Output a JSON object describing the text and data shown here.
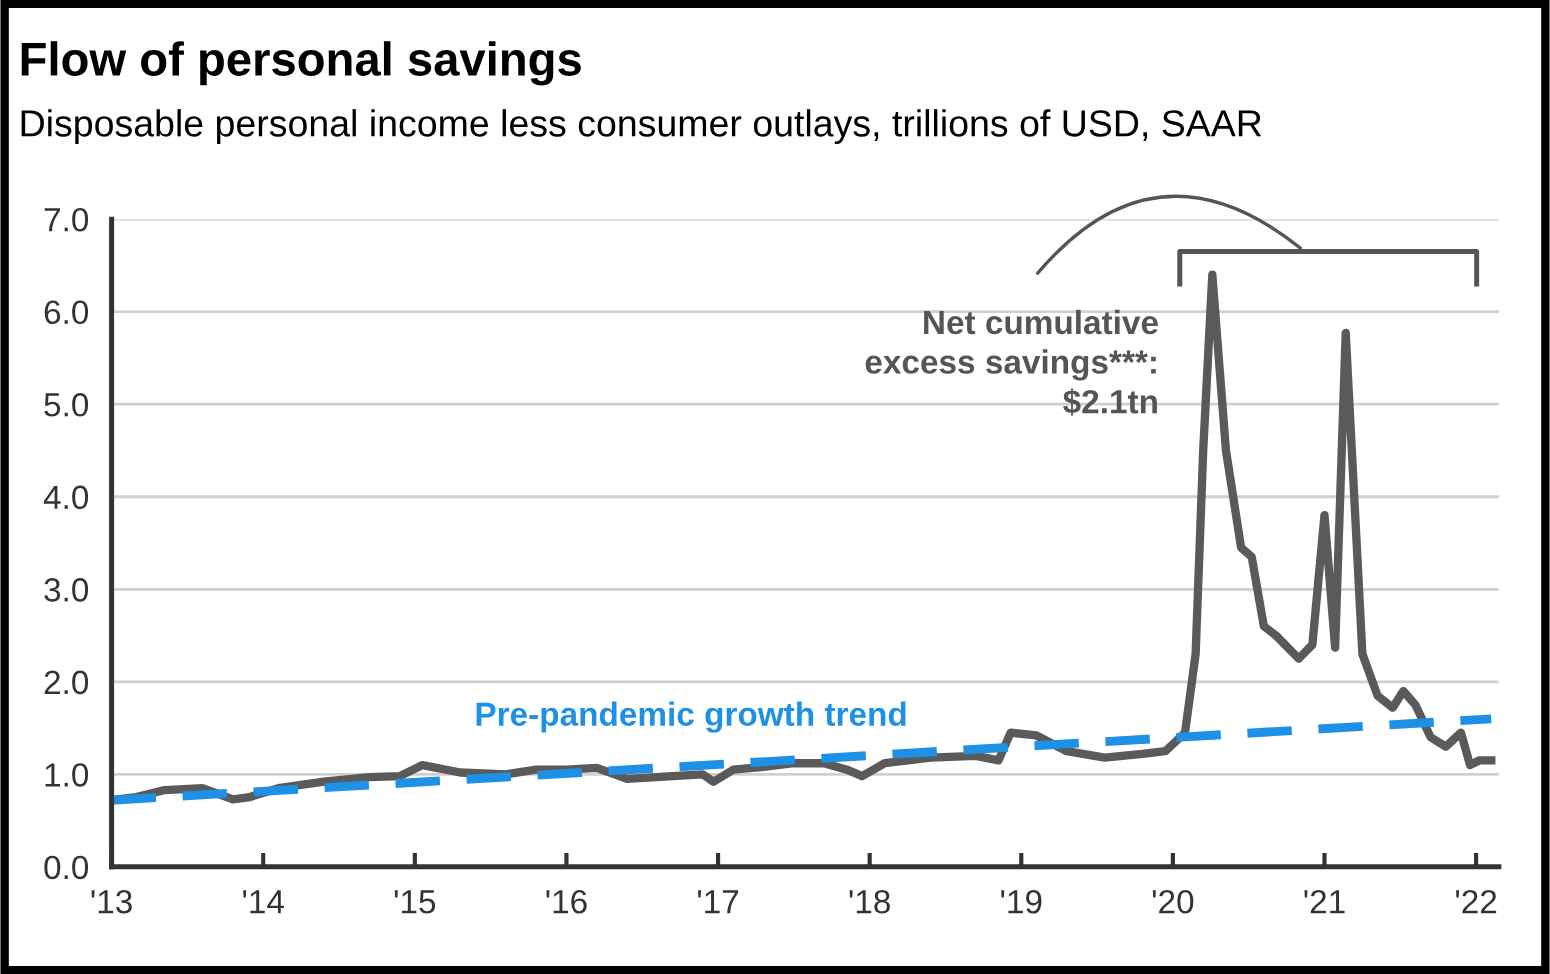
{
  "chart_data": {
    "type": "line",
    "title": "Flow of personal savings",
    "subtitle": "Disposable personal income less consumer outlays, trillions of USD, SAAR",
    "series": [
      {
        "color": "#5a5a5a",
        "line_style": "solid",
        "x": [
          2013.0,
          2013.15,
          2013.35,
          2013.6,
          2013.8,
          2013.9,
          2014.1,
          2014.4,
          2014.7,
          2014.9,
          2015.05,
          2015.3,
          2015.6,
          2015.8,
          2016.0,
          2016.2,
          2016.4,
          2016.7,
          2016.9,
          2016.97,
          2017.1,
          2017.3,
          2017.5,
          2017.7,
          2017.85,
          2017.95,
          2018.1,
          2018.4,
          2018.7,
          2018.85,
          2018.93,
          2019.1,
          2019.3,
          2019.55,
          2019.8,
          2019.95,
          2020.08,
          2020.15,
          2020.2,
          2020.26,
          2020.35,
          2020.45,
          2020.52,
          2020.6,
          2020.68,
          2020.83,
          2020.92,
          2021.0,
          2021.07,
          2021.14,
          2021.25,
          2021.35,
          2021.45,
          2021.52,
          2021.6,
          2021.7,
          2021.8,
          2021.9,
          2021.96,
          2022.02,
          2022.1
        ],
        "values": [
          0.72,
          0.75,
          0.83,
          0.85,
          0.73,
          0.75,
          0.85,
          0.92,
          0.97,
          0.98,
          1.1,
          1.02,
          1.0,
          1.05,
          1.05,
          1.07,
          0.95,
          0.98,
          1.0,
          0.92,
          1.05,
          1.08,
          1.12,
          1.12,
          1.05,
          0.98,
          1.12,
          1.18,
          1.2,
          1.15,
          1.45,
          1.42,
          1.25,
          1.18,
          1.22,
          1.25,
          1.45,
          2.3,
          4.5,
          6.4,
          4.5,
          3.45,
          3.35,
          2.6,
          2.5,
          2.25,
          2.4,
          3.8,
          2.37,
          5.77,
          2.3,
          1.85,
          1.72,
          1.9,
          1.75,
          1.4,
          1.3,
          1.45,
          1.1,
          1.15,
          1.15
        ]
      },
      {
        "name": "Pre-pandemic growth trend",
        "color": "#1e90e6",
        "line_style": "dashed",
        "x": [
          2013.0,
          2022.1
        ],
        "values": [
          0.72,
          1.6
        ]
      }
    ],
    "xlim": [
      2013.0,
      2022.15
    ],
    "xticks": [
      {
        "value": 2013,
        "label": "'13"
      },
      {
        "value": 2014,
        "label": "'14"
      },
      {
        "value": 2015,
        "label": "'15"
      },
      {
        "value": 2016,
        "label": "'16"
      },
      {
        "value": 2017,
        "label": "'17"
      },
      {
        "value": 2018,
        "label": "'18"
      },
      {
        "value": 2019,
        "label": "'19"
      },
      {
        "value": 2020,
        "label": "'20"
      },
      {
        "value": 2021,
        "label": "'21"
      },
      {
        "value": 2022,
        "label": "'22"
      }
    ],
    "ylim": [
      0,
      7
    ],
    "yticks": [
      {
        "value": 0,
        "label": "0.0"
      },
      {
        "value": 1,
        "label": "1.0"
      },
      {
        "value": 2,
        "label": "2.0"
      },
      {
        "value": 3,
        "label": "3.0"
      },
      {
        "value": 4,
        "label": "4.0"
      },
      {
        "value": 5,
        "label": "5.0"
      },
      {
        "value": 6,
        "label": "6.0"
      },
      {
        "value": 7,
        "label": "7.0"
      }
    ],
    "grid": "y",
    "legend": false,
    "annotations": [
      "Net cumulative\nexcess savings***:\n$2.1tn"
    ]
  }
}
